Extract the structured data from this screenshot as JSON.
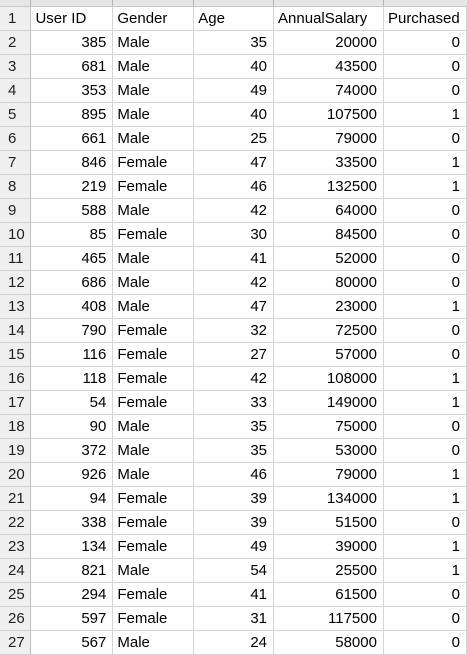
{
  "sheet": {
    "headers": [
      "User ID",
      "Gender",
      "Age",
      "AnnualSalary",
      "Purchased"
    ],
    "rows": [
      [
        385,
        "Male",
        35,
        20000,
        0
      ],
      [
        681,
        "Male",
        40,
        43500,
        0
      ],
      [
        353,
        "Male",
        49,
        74000,
        0
      ],
      [
        895,
        "Male",
        40,
        107500,
        1
      ],
      [
        661,
        "Male",
        25,
        79000,
        0
      ],
      [
        846,
        "Female",
        47,
        33500,
        1
      ],
      [
        219,
        "Female",
        46,
        132500,
        1
      ],
      [
        588,
        "Male",
        42,
        64000,
        0
      ],
      [
        85,
        "Female",
        30,
        84500,
        0
      ],
      [
        465,
        "Male",
        41,
        52000,
        0
      ],
      [
        686,
        "Male",
        42,
        80000,
        0
      ],
      [
        408,
        "Male",
        47,
        23000,
        1
      ],
      [
        790,
        "Female",
        32,
        72500,
        0
      ],
      [
        116,
        "Female",
        27,
        57000,
        0
      ],
      [
        118,
        "Female",
        42,
        108000,
        1
      ],
      [
        54,
        "Female",
        33,
        149000,
        1
      ],
      [
        90,
        "Male",
        35,
        75000,
        0
      ],
      [
        372,
        "Male",
        35,
        53000,
        0
      ],
      [
        926,
        "Male",
        46,
        79000,
        1
      ],
      [
        94,
        "Female",
        39,
        134000,
        1
      ],
      [
        338,
        "Female",
        39,
        51500,
        0
      ],
      [
        134,
        "Female",
        49,
        39000,
        1
      ],
      [
        821,
        "Male",
        54,
        25500,
        1
      ],
      [
        294,
        "Female",
        41,
        61500,
        0
      ],
      [
        597,
        "Female",
        31,
        117500,
        0
      ],
      [
        567,
        "Male",
        24,
        58000,
        0
      ]
    ]
  }
}
